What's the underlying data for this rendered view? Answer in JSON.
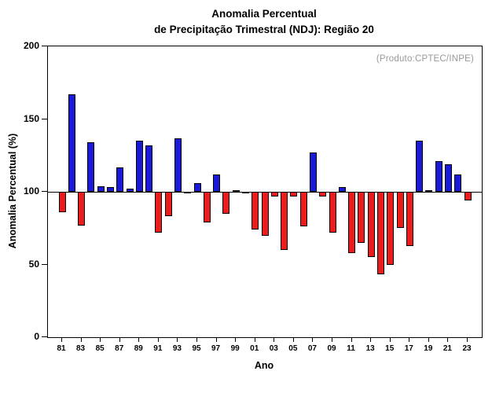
{
  "title": {
    "line1": "Anomalia Percentual",
    "line2": "de Precipitação Trimestral (NDJ): Região 20"
  },
  "annotation": "(Produto:CPTEC/INPE)",
  "axes": {
    "ylabel": "Anomalia Percentual (%)",
    "xlabel": "Ano"
  },
  "colors": {
    "above_baseline": "#1a1ad6",
    "below_baseline": "#ea1c1c",
    "bar_border": "#000000",
    "annotation_gray": "#999999"
  },
  "chart_data": {
    "type": "bar",
    "title": "Anomalia Percentual de Precipitação Trimestral (NDJ): Região 20",
    "xlabel": "Ano",
    "ylabel": "Anomalia Percentual (%)",
    "ylim": [
      0,
      200
    ],
    "yticks": [
      0,
      50,
      100,
      150,
      200
    ],
    "baseline": 100,
    "grid": false,
    "legend": "none",
    "annotation": "(Produto:CPTEC/INPE)",
    "bar_color_rule": "blue above 100, red below 100",
    "categories": [
      "81",
      "82",
      "83",
      "84",
      "85",
      "86",
      "87",
      "88",
      "89",
      "90",
      "91",
      "92",
      "93",
      "94",
      "95",
      "96",
      "97",
      "98",
      "99",
      "00",
      "01",
      "02",
      "03",
      "04",
      "05",
      "06",
      "07",
      "08",
      "09",
      "10",
      "11",
      "12",
      "13",
      "14",
      "15",
      "16",
      "17",
      "18",
      "19",
      "20",
      "21",
      "22",
      "23"
    ],
    "values": [
      86,
      167,
      77,
      134,
      104,
      103,
      117,
      102,
      135,
      132,
      72,
      83,
      137,
      99,
      106,
      79,
      112,
      85,
      101,
      99,
      74,
      70,
      97,
      60,
      97,
      76,
      127,
      97,
      72,
      103,
      58,
      65,
      55,
      43,
      50,
      75,
      63,
      135,
      101,
      121,
      119,
      112,
      94
    ],
    "xtick_label_every": 2
  }
}
